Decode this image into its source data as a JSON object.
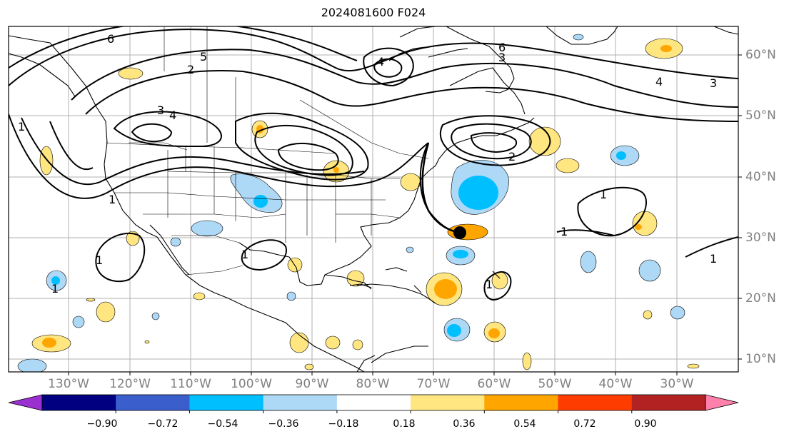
{
  "title": "2024081600 F024",
  "latitude_labels": [
    "60°N",
    "50°N",
    "40°N",
    "30°N",
    "20°N",
    "10°N"
  ],
  "longitude_labels": [
    "130°W",
    "120°W",
    "110°W",
    "100°W",
    "90°W",
    "80°W",
    "70°W",
    "60°W",
    "50°W",
    "40°W",
    "30°W"
  ],
  "contour_labels": [
    "1",
    "2",
    "3",
    "4",
    "5",
    "6"
  ],
  "colorbar": {
    "ticks": [
      "−0.90",
      "−0.72",
      "−0.54",
      "−0.36",
      "−0.18",
      "0.18",
      "0.36",
      "0.54",
      "0.72",
      "0.90"
    ],
    "colors": [
      "#9b30d0",
      "#000080",
      "#3a5fcd",
      "#00bfff",
      "#add8f6",
      "#ffffff",
      "#ffe680",
      "#ffa500",
      "#ff3c00",
      "#b22222",
      "#ff80aa"
    ]
  },
  "track_marker": {
    "lat": 31,
    "lon": -66
  }
}
